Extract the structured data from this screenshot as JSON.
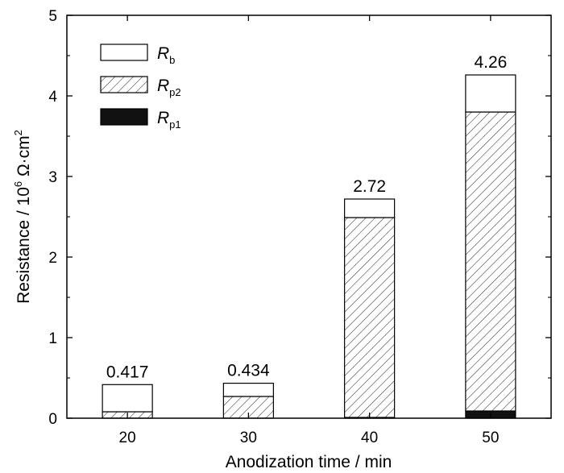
{
  "chart_data": {
    "type": "bar",
    "stacked": true,
    "categories": [
      "20",
      "30",
      "40",
      "50"
    ],
    "series": [
      {
        "name": "R",
        "name_sub": "p1",
        "fill": "solid",
        "color": "#111111",
        "values": [
          0.0,
          0.0,
          0.01,
          0.09
        ]
      },
      {
        "name": "R",
        "name_sub": "p2",
        "fill": "hatched",
        "color": "#333333",
        "values": [
          0.08,
          0.27,
          2.48,
          3.71
        ]
      },
      {
        "name": "R",
        "name_sub": "b",
        "fill": "open",
        "color": "#ffffff",
        "values": [
          0.337,
          0.164,
          0.23,
          0.46
        ]
      }
    ],
    "totals": [
      0.417,
      0.434,
      2.72,
      4.26
    ],
    "total_labels": [
      "0.417",
      "0.434",
      "2.72",
      "4.26"
    ],
    "xlabel": "Anodization time / min",
    "ylabel": {
      "prefix": "Resistance / 10",
      "exponent": "6",
      "unit": " Ω·cm",
      "unit_exponent": "2"
    },
    "ylim": [
      0,
      5
    ],
    "yticks": [
      "0",
      "1",
      "2",
      "3",
      "4",
      "5"
    ],
    "legend_position": "top-left",
    "legend_order": [
      2,
      1,
      0
    ],
    "grid": false
  }
}
